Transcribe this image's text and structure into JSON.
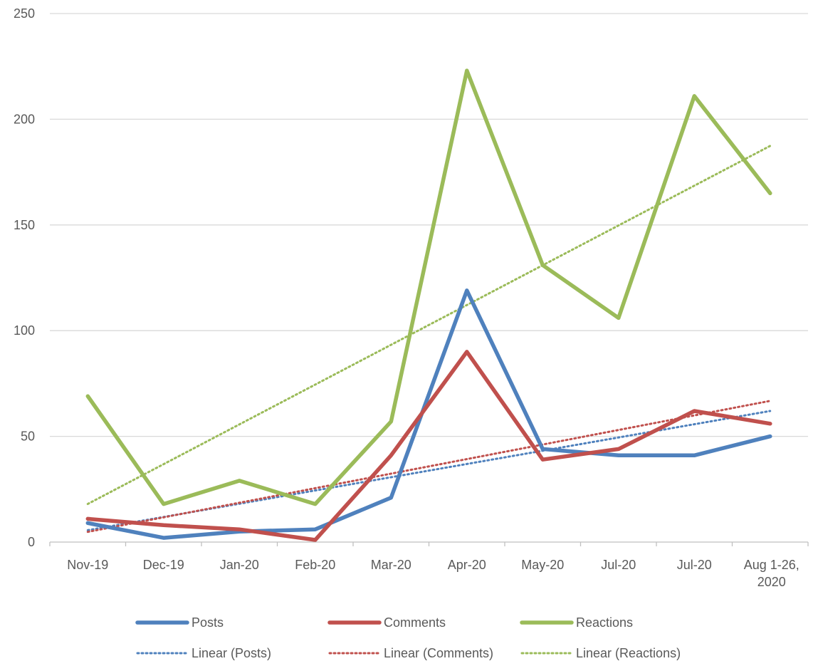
{
  "chart_data": {
    "type": "line",
    "categories": [
      "Nov-19",
      "Dec-19",
      "Jan-20",
      "Feb-20",
      "Mar-20",
      "Apr-20",
      "May-20",
      "Jul-20",
      "Jul-20",
      "Aug 1-26, 2020"
    ],
    "series": [
      {
        "name": "Posts",
        "values": [
          9,
          2,
          5,
          6,
          21,
          119,
          44,
          41,
          41,
          50
        ],
        "color": "#4f81bd"
      },
      {
        "name": "Comments",
        "values": [
          11,
          8,
          6,
          1,
          41,
          90,
          39,
          44,
          62,
          56
        ],
        "color": "#c0504d"
      },
      {
        "name": "Reactions",
        "values": [
          69,
          18,
          29,
          18,
          57,
          223,
          131,
          106,
          211,
          165
        ],
        "color": "#9bbb59"
      }
    ],
    "trendlines": [
      {
        "name": "Linear (Posts)",
        "of": "Posts",
        "type": "linear",
        "color": "#4f81bd"
      },
      {
        "name": "Linear (Comments)",
        "of": "Comments",
        "type": "linear",
        "color": "#c0504d"
      },
      {
        "name": "Linear (Reactions)",
        "of": "Reactions",
        "type": "linear",
        "color": "#9bbb59"
      }
    ],
    "y_ticks": [
      0,
      50,
      100,
      150,
      200,
      250
    ],
    "ylim": [
      0,
      250
    ],
    "grid": true,
    "legend_position": "bottom",
    "gridline_color": "#d9d9d9",
    "axis_color": "#bfbfbf"
  }
}
